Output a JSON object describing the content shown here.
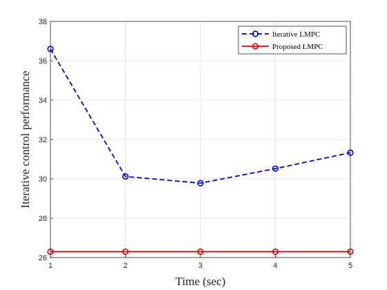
{
  "chart_data": {
    "type": "line",
    "title": "",
    "xlabel": "Time (sec)",
    "ylabel": "Iterative control performance",
    "xlim": [
      1,
      5
    ],
    "ylim": [
      26,
      38
    ],
    "xticks": [
      1,
      2,
      3,
      4,
      5
    ],
    "yticks": [
      26,
      28,
      30,
      32,
      34,
      36,
      38
    ],
    "grid": true,
    "legend_position": "top-right",
    "x": [
      1,
      2,
      3,
      4,
      5
    ],
    "series": [
      {
        "name": "Iterative LMPC",
        "values": [
          36.6,
          30.12,
          29.78,
          30.52,
          31.33
        ],
        "color": "#0000cc",
        "line_style": "dashed",
        "marker": "circle"
      },
      {
        "name": "Proposed LMPC",
        "values": [
          26.3,
          26.3,
          26.3,
          26.3,
          26.3
        ],
        "color": "#dd0000",
        "line_style": "solid",
        "marker": "circle"
      }
    ]
  }
}
